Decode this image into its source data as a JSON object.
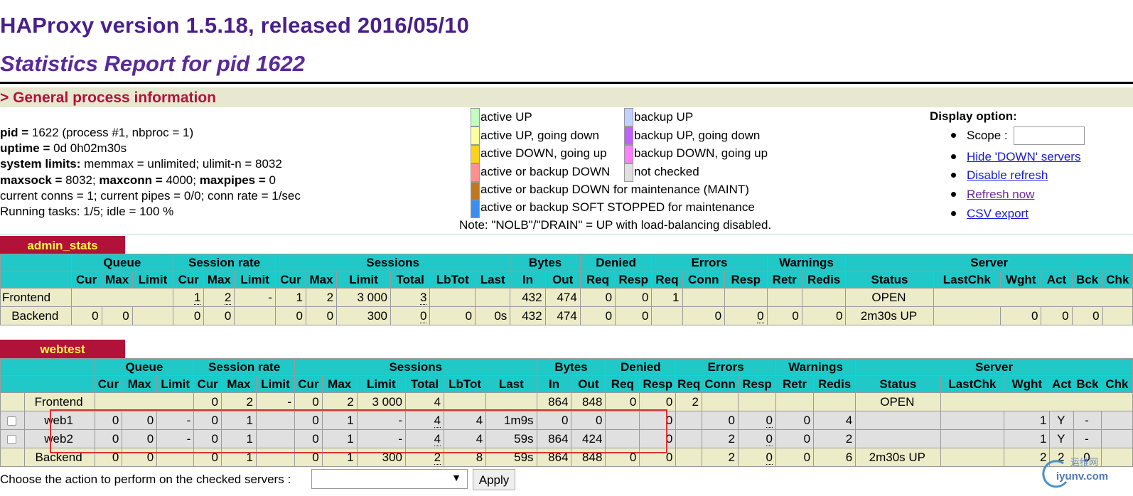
{
  "header": {
    "title": "HAProxy version 1.5.18, released 2016/05/10",
    "subtitle": "Statistics Report for pid 1622",
    "section": "> General process information"
  },
  "process": {
    "pid_label": "pid = ",
    "pid_value": "1622 (process #1, nbproc = 1)",
    "uptime_label": "uptime = ",
    "uptime_value": "0d 0h02m30s",
    "limits_label": "system limits:",
    "limits_value": " memmax = unlimited; ulimit-n = 8032",
    "maxsock_label": "maxsock = ",
    "maxsock_value": "8032; ",
    "maxconn_label": "maxconn = ",
    "maxconn_value": "4000; ",
    "maxpipes_label": "maxpipes = ",
    "maxpipes_value": "0",
    "conns": "current conns = 1; current pipes = 0/0; conn rate = 1/sec",
    "tasks": "Running tasks: 1/5; idle = 100 %"
  },
  "legend": {
    "active_up": "active UP",
    "active_up_going_down": "active UP, going down",
    "active_down_going_up": "active DOWN, going up",
    "active_backup_down": "active or backup DOWN",
    "maint": "active or backup DOWN for maintenance (MAINT)",
    "soft_stopped": "active or backup SOFT STOPPED for maintenance",
    "backup_up": "backup UP",
    "backup_up_going_down": "backup UP, going down",
    "backup_down_going_up": "backup DOWN, going up",
    "not_checked": "not checked",
    "note": "Note: \"NOLB\"/\"DRAIN\" = UP with load-balancing disabled.",
    "colors": {
      "active_up": "#c0ffc0",
      "active_up_going_down": "#ffffa0",
      "active_down_going_up": "#ffd020",
      "active_backup_down": "#ff9090",
      "maint": "#c07820",
      "soft_stopped": "#3a8ef0",
      "backup_up": "#c0d0ff",
      "backup_up_going_down": "#c060ff",
      "backup_down_going_up": "#ff80ff",
      "not_checked": "#e0e0e0"
    }
  },
  "display": {
    "title": "Display option:",
    "scope_label": "Scope :",
    "hide_down": "Hide 'DOWN' servers",
    "disable_refresh": "Disable refresh",
    "refresh_now": "Refresh now",
    "csv_export": "CSV export"
  },
  "groups": {
    "queue": "Queue",
    "session_rate": "Session rate",
    "sessions": "Sessions",
    "bytes": "Bytes",
    "denied": "Denied",
    "errors": "Errors",
    "warnings": "Warnings",
    "server": "Server"
  },
  "cols": {
    "cur": "Cur",
    "max": "Max",
    "limit": "Limit",
    "total": "Total",
    "lbtot": "LbTot",
    "last": "Last",
    "in": "In",
    "out": "Out",
    "req": "Req",
    "resp": "Resp",
    "conn": "Conn",
    "retr": "Retr",
    "redis": "Redis",
    "status": "Status",
    "lastchk": "LastChk",
    "wght": "Wght",
    "act": "Act",
    "bck": "Bck",
    "chk": "Chk"
  },
  "admin_stats": {
    "name": "admin_stats",
    "frontend": {
      "label": "Frontend",
      "sr_cur": "1",
      "sr_max": "2",
      "sr_limit": "-",
      "s_cur": "1",
      "s_max": "2",
      "s_limit": "3 000",
      "s_total": "3",
      "b_in": "432",
      "b_out": "474",
      "d_req": "0",
      "d_resp": "0",
      "e_req": "1",
      "status": "OPEN"
    },
    "backend": {
      "label": "Backend",
      "q_cur": "0",
      "q_max": "0",
      "sr_cur": "0",
      "sr_max": "0",
      "s_cur": "0",
      "s_max": "0",
      "s_limit": "300",
      "s_total": "0",
      "s_lbtot": "0",
      "s_last": "0s",
      "b_in": "432",
      "b_out": "474",
      "d_req": "0",
      "d_resp": "0",
      "e_conn": "0",
      "e_resp": "0",
      "w_retr": "0",
      "w_redis": "0",
      "status": "2m30s UP",
      "wght": "0",
      "act": "0",
      "bck": "0"
    }
  },
  "webtest": {
    "name": "webtest",
    "frontend": {
      "label": "Frontend",
      "sr_cur": "0",
      "sr_max": "2",
      "sr_limit": "-",
      "s_cur": "0",
      "s_max": "2",
      "s_limit": "3 000",
      "s_total": "4",
      "b_in": "864",
      "b_out": "848",
      "d_req": "0",
      "d_resp": "0",
      "e_req": "2",
      "status": "OPEN"
    },
    "servers": [
      {
        "label": "web1",
        "q_cur": "0",
        "q_max": "0",
        "q_limit": "-",
        "sr_cur": "0",
        "sr_max": "1",
        "s_cur": "0",
        "s_max": "1",
        "s_limit": "-",
        "s_total": "4",
        "s_lbtot": "4",
        "s_last": "1m9s",
        "b_in": "0",
        "b_out": "0",
        "d_resp": "0",
        "e_conn": "0",
        "e_resp": "0",
        "w_retr": "0",
        "w_redis": "4",
        "wght": "1",
        "act": "Y",
        "bck": "-"
      },
      {
        "label": "web2",
        "q_cur": "0",
        "q_max": "0",
        "q_limit": "-",
        "sr_cur": "0",
        "sr_max": "1",
        "s_cur": "0",
        "s_max": "1",
        "s_limit": "-",
        "s_total": "4",
        "s_lbtot": "4",
        "s_last": "59s",
        "b_in": "864",
        "b_out": "424",
        "d_resp": "0",
        "e_conn": "2",
        "e_resp": "0",
        "w_retr": "0",
        "w_redis": "2",
        "wght": "1",
        "act": "Y",
        "bck": "-"
      }
    ],
    "backend": {
      "label": "Backend",
      "q_cur": "0",
      "q_max": "0",
      "sr_cur": "0",
      "sr_max": "1",
      "s_cur": "0",
      "s_max": "1",
      "s_limit": "300",
      "s_total": "2",
      "s_lbtot": "8",
      "s_last": "59s",
      "b_in": "864",
      "b_out": "848",
      "d_req": "0",
      "d_resp": "0",
      "e_conn": "2",
      "e_resp": "0",
      "w_retr": "0",
      "w_redis": "6",
      "status": "2m30s UP",
      "wght": "2",
      "act": "2",
      "bck": "0"
    }
  },
  "action": {
    "label": "Choose the action to perform on the checked servers :",
    "select_arrow": "▼",
    "apply": "Apply"
  },
  "watermark": {
    "line1": "运维网",
    "line2": "iyunv.com"
  }
}
